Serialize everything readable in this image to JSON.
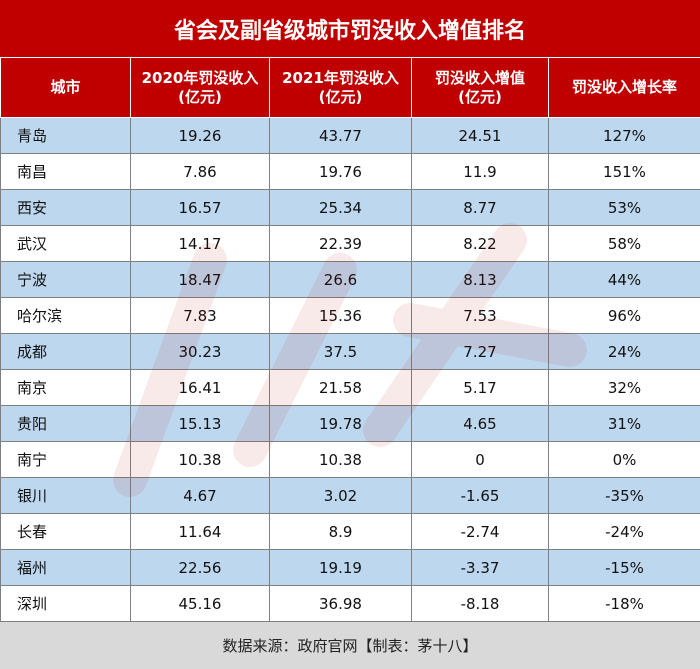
{
  "title": "省会及副省级城市罚没收入增值排名",
  "headers": {
    "city": "城市",
    "col2020_line1": "2020年罚没收入",
    "col2020_line2": "(亿元)",
    "col2021_line1": "2021年罚没收入",
    "col2021_line2": "(亿元)",
    "increase_line1": "罚没收入增值",
    "increase_line2": "(亿元)",
    "growth": "罚没收入增长率"
  },
  "rows": [
    {
      "city": "青岛",
      "v2020": "19.26",
      "v2021": "43.77",
      "increase": "24.51",
      "growth": "127%"
    },
    {
      "city": "南昌",
      "v2020": "7.86",
      "v2021": "19.76",
      "increase": "11.9",
      "growth": "151%"
    },
    {
      "city": "西安",
      "v2020": "16.57",
      "v2021": "25.34",
      "increase": "8.77",
      "growth": "53%"
    },
    {
      "city": "武汉",
      "v2020": "14.17",
      "v2021": "22.39",
      "increase": "8.22",
      "growth": "58%"
    },
    {
      "city": "宁波",
      "v2020": "18.47",
      "v2021": "26.6",
      "increase": "8.13",
      "growth": "44%"
    },
    {
      "city": "哈尔滨",
      "v2020": "7.83",
      "v2021": "15.36",
      "increase": "7.53",
      "growth": "96%"
    },
    {
      "city": "成都",
      "v2020": "30.23",
      "v2021": "37.5",
      "increase": "7.27",
      "growth": "24%"
    },
    {
      "city": "南京",
      "v2020": "16.41",
      "v2021": "21.58",
      "increase": "5.17",
      "growth": "32%"
    },
    {
      "city": "贵阳",
      "v2020": "15.13",
      "v2021": "19.78",
      "increase": "4.65",
      "growth": "31%"
    },
    {
      "city": "南宁",
      "v2020": "10.38",
      "v2021": "10.38",
      "increase": "0",
      "growth": "0%"
    },
    {
      "city": "银川",
      "v2020": "4.67",
      "v2021": "3.02",
      "increase": "-1.65",
      "growth": "-35%"
    },
    {
      "city": "长春",
      "v2020": "11.64",
      "v2021": "8.9",
      "increase": "-2.74",
      "growth": "-24%"
    },
    {
      "city": "福州",
      "v2020": "22.56",
      "v2021": "19.19",
      "increase": "-3.37",
      "growth": "-15%"
    },
    {
      "city": "深圳",
      "v2020": "45.16",
      "v2021": "36.98",
      "increase": "-8.18",
      "growth": "-18%"
    }
  ],
  "source": "数据来源：政府官网【制表：茅十八】",
  "watermark_icon": "brand-watermark-icon",
  "colors": {
    "header_bg": "#c00000",
    "row_alt_bg": "#bdd7ee",
    "footer_bg": "#d9d9d9"
  }
}
